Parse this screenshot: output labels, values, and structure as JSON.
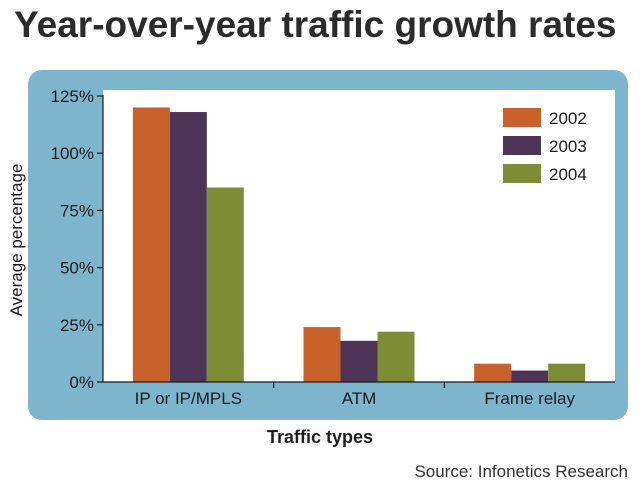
{
  "chart_data": {
    "type": "bar",
    "title": "Year-over-year traffic growth rates",
    "xlabel": "Traffic types",
    "ylabel": "Average percentage",
    "categories": [
      "IP or IP/MPLS",
      "ATM",
      "Frame relay"
    ],
    "series": [
      {
        "name": "2002",
        "color": "#c8622a",
        "values": [
          120,
          24,
          8
        ]
      },
      {
        "name": "2003",
        "color": "#4e3558",
        "values": [
          118,
          18,
          5
        ]
      },
      {
        "name": "2004",
        "color": "#7e8c36",
        "values": [
          85,
          22,
          8
        ]
      }
    ],
    "yticks": [
      "0%",
      "25%",
      "50%",
      "75%",
      "100%",
      "125%"
    ],
    "ylim": [
      0,
      125
    ],
    "legend_position": "top-right",
    "grid": false,
    "source": "Source: Infonetics Research"
  },
  "colors": {
    "frame": "#7db6cc",
    "plot_background": "#ffffff",
    "axis": "#1a1a1a"
  }
}
